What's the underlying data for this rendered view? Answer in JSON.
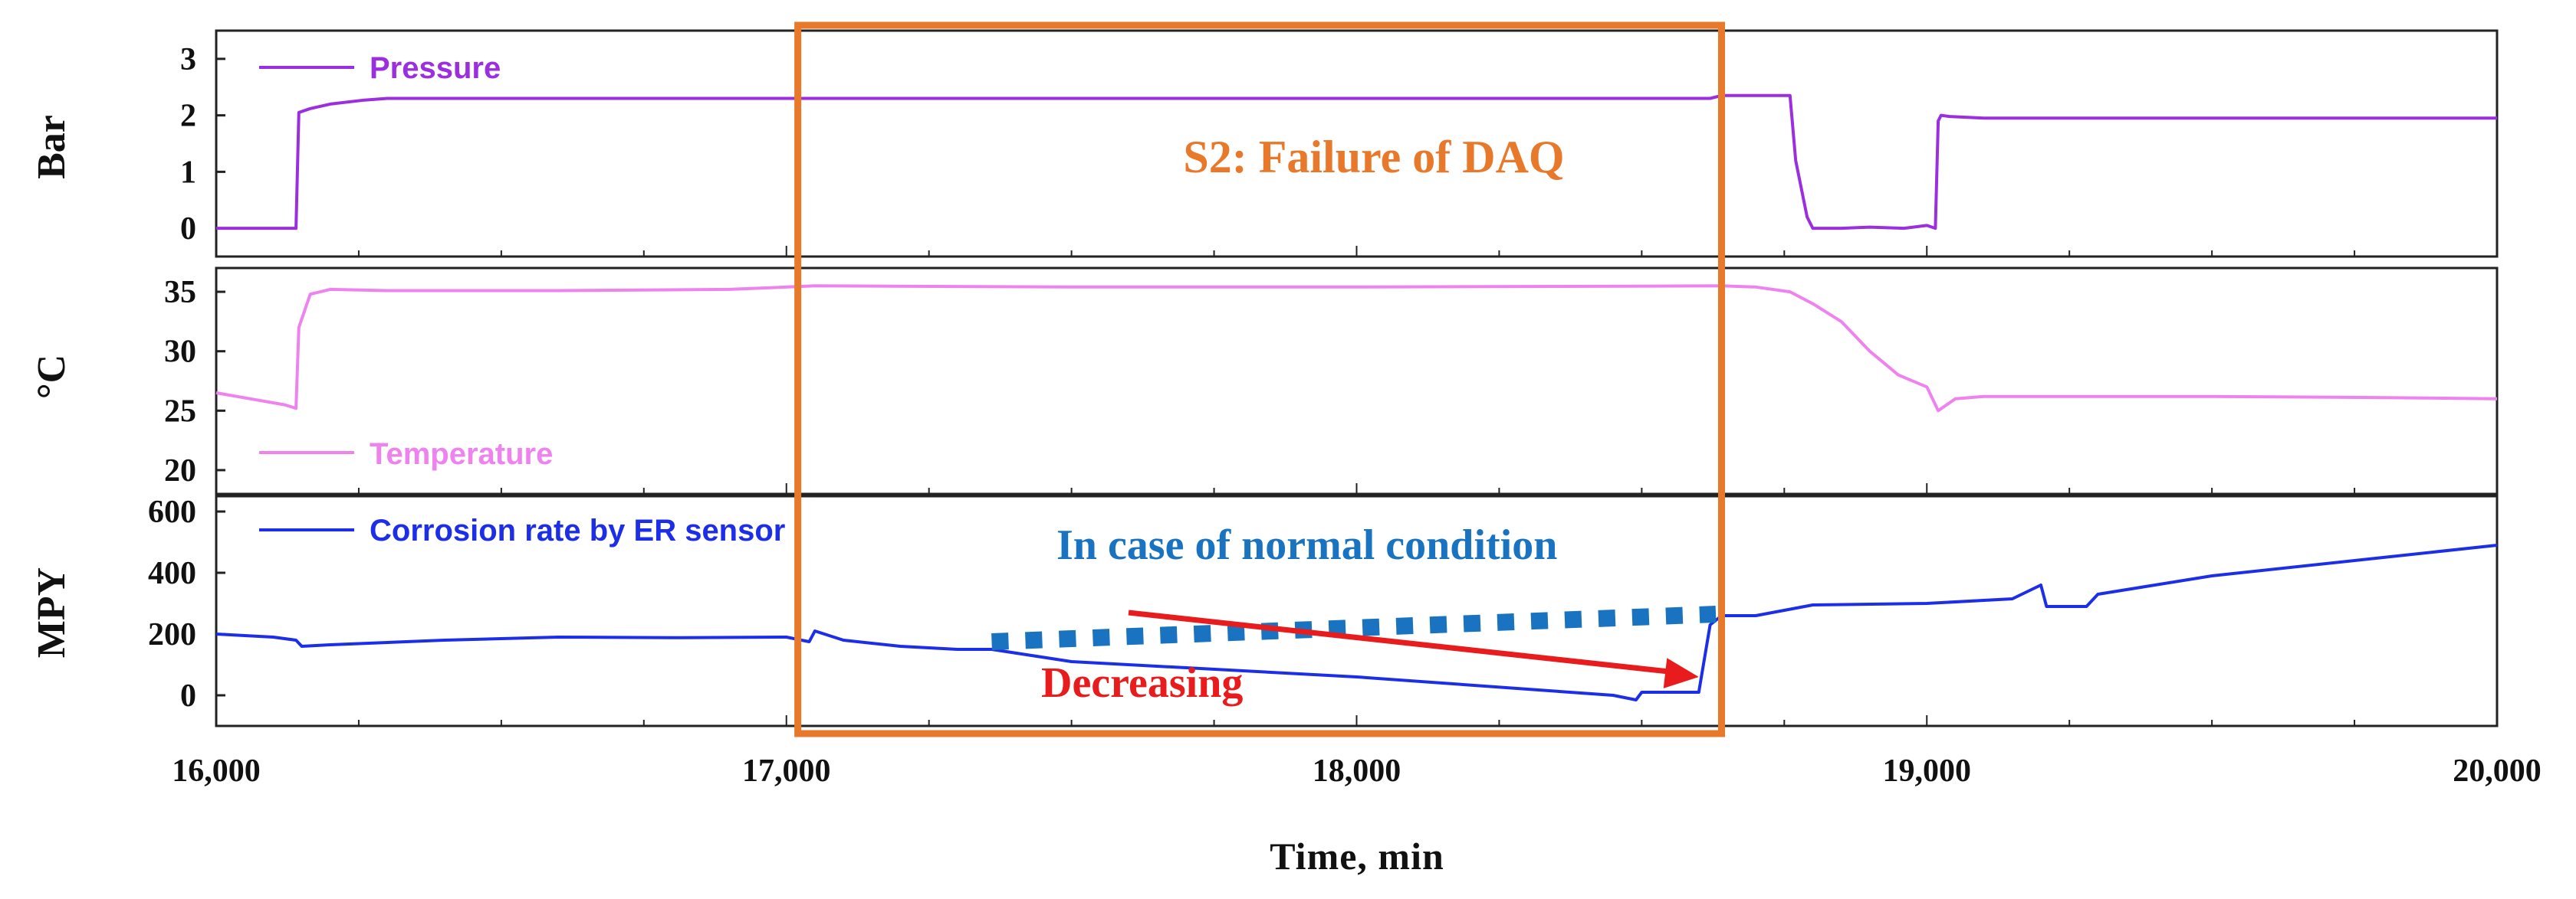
{
  "chart_data": {
    "type": "line",
    "xlabel": "Time, min",
    "xlim": [
      16000,
      20000
    ],
    "xticks": [
      16000,
      17000,
      18000,
      19000,
      20000
    ],
    "xtick_labels": [
      "16,000",
      "17,000",
      "18,000",
      "19,000",
      "20,000"
    ],
    "panels": [
      {
        "ylabel": "Bar",
        "ylim": [
          -0.5,
          3.5
        ],
        "yticks": [
          0,
          1,
          2,
          3
        ],
        "series": [
          {
            "name": "Pressure",
            "color": "#9b2fe0",
            "x": [
              16000,
              16140,
              16145,
              16165,
              16200,
              16260,
              16300,
              17050,
              18000,
              18620,
              18640,
              18760,
              18770,
              18790,
              18800,
              18850,
              18900,
              18960,
              19000,
              19015,
              19020,
              19025,
              19040,
              19100,
              19500,
              20000
            ],
            "y": [
              0,
              0,
              2.05,
              2.12,
              2.2,
              2.27,
              2.3,
              2.3,
              2.3,
              2.3,
              2.35,
              2.35,
              1.2,
              0.2,
              0,
              0,
              0.02,
              0,
              0.05,
              0,
              1.9,
              2.0,
              1.98,
              1.95,
              1.95,
              1.95
            ]
          }
        ]
      },
      {
        "ylabel": "°C",
        "ylim": [
          18,
          37
        ],
        "yticks": [
          20,
          25,
          30,
          35
        ],
        "series": [
          {
            "name": "Temperature",
            "color": "#ee82ee",
            "x": [
              16000,
              16060,
              16120,
              16140,
              16145,
              16165,
              16200,
              16300,
              16600,
              16900,
              17050,
              17500,
              18000,
              18640,
              18700,
              18760,
              18800,
              18850,
              18900,
              18950,
              19000,
              19020,
              19050,
              19100,
              19500,
              19800,
              20000
            ],
            "y": [
              26.5,
              26,
              25.5,
              25.2,
              32,
              34.8,
              35.2,
              35.1,
              35.1,
              35.2,
              35.5,
              35.4,
              35.4,
              35.5,
              35.4,
              35,
              34,
              32.5,
              30,
              28,
              27,
              25,
              26,
              26.2,
              26.2,
              26.1,
              26
            ]
          }
        ]
      },
      {
        "ylabel": "MPY",
        "ylim": [
          -100,
          650
        ],
        "yticks": [
          0,
          200,
          400,
          600
        ],
        "series": [
          {
            "name": "Corrosion rate by ER sensor",
            "color": "#1d2ee8",
            "x": [
              16000,
              16100,
              16140,
              16150,
              16200,
              16400,
              16600,
              16800,
              17000,
              17040,
              17050,
              17100,
              17200,
              17300,
              17360,
              17500,
              18000,
              18300,
              18450,
              18490,
              18500,
              18600,
              18620,
              18640,
              18700,
              18800,
              19000,
              19150,
              19200,
              19210,
              19280,
              19300,
              19500,
              19800,
              20000
            ],
            "y": [
              200,
              190,
              180,
              160,
              165,
              180,
              190,
              188,
              190,
              175,
              210,
              180,
              160,
              150,
              150,
              110,
              60,
              20,
              0,
              -15,
              10,
              10,
              230,
              260,
              260,
              295,
              300,
              315,
              360,
              290,
              290,
              330,
              390,
              450,
              490
            ]
          }
        ]
      }
    ],
    "annotations": {
      "box_title": "S2: Failure of DAQ",
      "box_range": [
        17020,
        18640
      ],
      "normal_condition_label": "In case of normal condition",
      "normal_condition_line": {
        "x": [
          17360,
          18630
        ],
        "y": [
          175,
          265
        ]
      },
      "decreasing_label": "Decreasing",
      "decreasing_arrow": {
        "x": [
          17600,
          18600
        ],
        "y": [
          270,
          60
        ]
      }
    },
    "colors": {
      "box": "#e8792a",
      "dotted": "#1a73c0",
      "arrow": "#e81c1c"
    }
  }
}
